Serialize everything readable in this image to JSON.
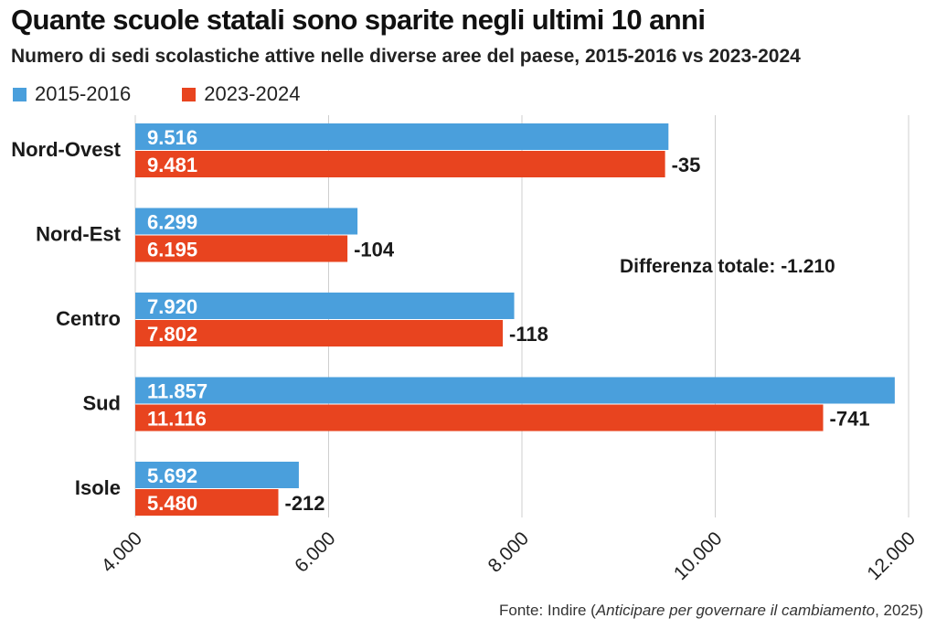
{
  "title": "Quante scuole statali sono sparite negli ultimi 10 anni",
  "subtitle": "Numero di sedi scolastiche attive nelle diverse aree del paese, 2015-2016 vs 2023-2024",
  "source": {
    "prefix": "Fonte: Indire (",
    "italic": "Anticipare per governare il cambiamento",
    "suffix": ", 2025)"
  },
  "colors": {
    "series_2015": "#4a9fdc",
    "series_2023": "#e8441f",
    "gridline": "#cfcfcf"
  },
  "chart_data": {
    "type": "bar",
    "orientation": "horizontal",
    "categories": [
      "Nord-Ovest",
      "Nord-Est",
      "Centro",
      "Sud",
      "Isole"
    ],
    "series": [
      {
        "name": "2015-2016",
        "values": [
          9516,
          6299,
          7920,
          11857,
          5692
        ],
        "labels": [
          "9.516",
          "6.299",
          "7.920",
          "11.857",
          "5.692"
        ]
      },
      {
        "name": "2023-2024",
        "values": [
          9481,
          6195,
          7802,
          11116,
          5480
        ],
        "labels": [
          "9.481",
          "6.195",
          "7.802",
          "11.116",
          "5.480"
        ]
      }
    ],
    "differences": [
      "-35",
      "-104",
      "-118",
      "-741",
      "-212"
    ],
    "annotation": "Differenza totale: -1.210",
    "xlim": [
      4000,
      12000
    ],
    "xticks": [
      4000,
      6000,
      8000,
      10000,
      12000
    ],
    "xtick_labels": [
      "4.000",
      "6.000",
      "8.000",
      "10.000",
      "12.000"
    ],
    "grid": "vertical",
    "legend_position": "top-left"
  }
}
